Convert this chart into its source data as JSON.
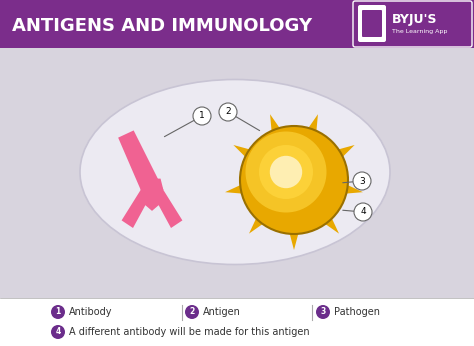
{
  "title": "ANTIGENS AND IMMUNOLOGY",
  "title_bg": "#7B2D8B",
  "title_color": "#FFFFFF",
  "bg_color": "#D8D4DE",
  "antibody_color": "#F06292",
  "antigen_color": "#E8A800",
  "oval_color": "#E4E0EA",
  "oval_edge": "#C8C4D4",
  "label_circle_color": "#6B2D8B",
  "legend_items": [
    {
      "num": "1",
      "label": "Antibody"
    },
    {
      "num": "2",
      "label": "Antigen"
    },
    {
      "num": "3",
      "label": "Pathogen"
    }
  ],
  "legend_item4": {
    "num": "4",
    "label": "A different antibody will be made for this antigen"
  },
  "byju_bg": "#7B2D8B",
  "byju_text": "BYJU'S",
  "byju_sub": "The Learning App",
  "separator_color": "#AAAAAA",
  "callout_line_color": "#666666"
}
